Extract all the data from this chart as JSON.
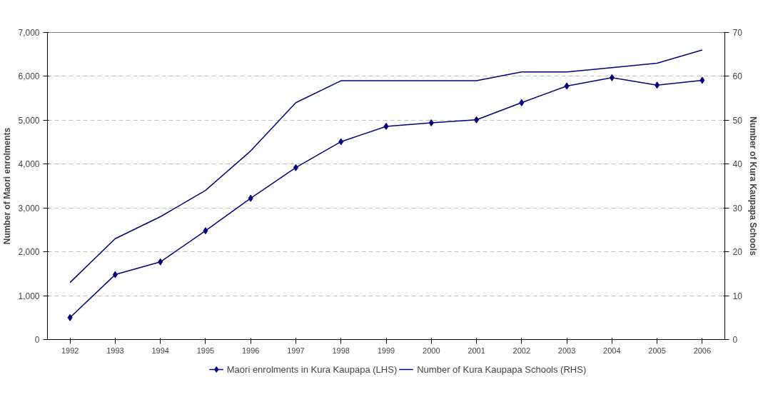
{
  "chart_data": {
    "type": "line",
    "categories": [
      "1992",
      "1993",
      "1994",
      "1995",
      "1996",
      "1997",
      "1998",
      "1999",
      "2000",
      "2001",
      "2002",
      "2003",
      "2004",
      "2005",
      "2006"
    ],
    "ylabel": "Number of Maori enrolments",
    "y2label": "Number of Kura Kaupapa Schools",
    "ylim": [
      0,
      7000
    ],
    "yticks": [
      {
        "value": 0,
        "label": "0"
      },
      {
        "value": 1000,
        "label": "1,000"
      },
      {
        "value": 2000,
        "label": "2,000"
      },
      {
        "value": 3000,
        "label": "3,000"
      },
      {
        "value": 4000,
        "label": "4,000"
      },
      {
        "value": 5000,
        "label": "5,000"
      },
      {
        "value": 6000,
        "label": "6,000"
      },
      {
        "value": 7000,
        "label": "7,000"
      }
    ],
    "y2lim": [
      0,
      70
    ],
    "y2ticks": [
      0,
      10,
      20,
      30,
      40,
      50,
      60,
      70
    ],
    "grid": "y",
    "legend": "bottom",
    "series": [
      {
        "name": "Maori enrolments in Kura Kaupapa (LHS)",
        "color": "#000080",
        "marker": "diamond",
        "values": [
          500,
          1480,
          1770,
          2480,
          3220,
          3920,
          4510,
          4860,
          4940,
          5010,
          5400,
          5780,
          5970,
          5800,
          5910
        ]
      },
      {
        "name": "Number of Kura Kaupapa Schools (RHS)",
        "color": "#000080",
        "marker": "none",
        "axis": "y2",
        "values": [
          13,
          23,
          28,
          34,
          43,
          54,
          59,
          59,
          59,
          59,
          61,
          61,
          62,
          63,
          66
        ]
      }
    ]
  }
}
